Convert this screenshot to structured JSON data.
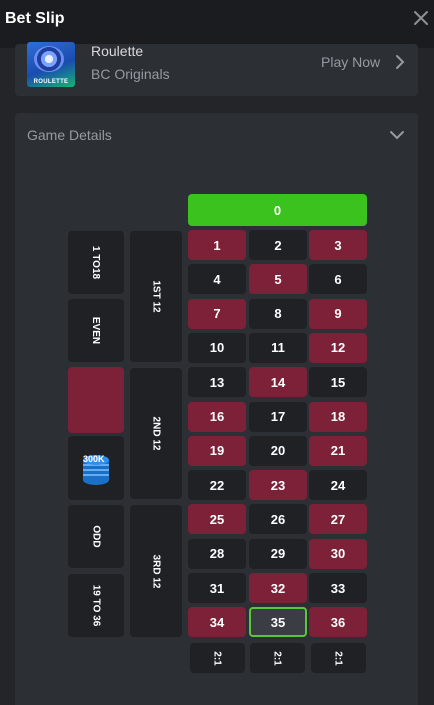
{
  "header": {
    "title": "Bet Slip"
  },
  "game": {
    "name": "Roulette",
    "provider": "BC Originals",
    "play_label": "Play Now",
    "thumb_label": "ROULETTE"
  },
  "details": {
    "label": "Game Details"
  },
  "board": {
    "zero": "0",
    "columns_label": "2:1",
    "dozens": [
      "1ST 12",
      "2ND 12",
      "3RD 12"
    ],
    "outside": {
      "low": "1 TO18",
      "even": "EVEN",
      "odd": "ODD",
      "high": "19 TO 36"
    },
    "chip_label": "300K",
    "selected": 35,
    "rows": [
      [
        1,
        2,
        3
      ],
      [
        4,
        5,
        6
      ],
      [
        7,
        8,
        9
      ],
      [
        10,
        11,
        12
      ],
      [
        13,
        14,
        15
      ],
      [
        16,
        17,
        18
      ],
      [
        19,
        20,
        21
      ],
      [
        22,
        23,
        24
      ],
      [
        25,
        26,
        27
      ],
      [
        28,
        29,
        30
      ],
      [
        31,
        32,
        33
      ],
      [
        34,
        35,
        36
      ]
    ],
    "red_numbers": [
      1,
      3,
      5,
      7,
      9,
      12,
      14,
      16,
      18,
      19,
      21,
      23,
      25,
      27,
      30,
      32,
      34,
      36
    ]
  },
  "colors": {
    "red": "#7c2138",
    "black": "#1f2125",
    "green": "#3cc21f",
    "accent": "#5bc63a"
  }
}
